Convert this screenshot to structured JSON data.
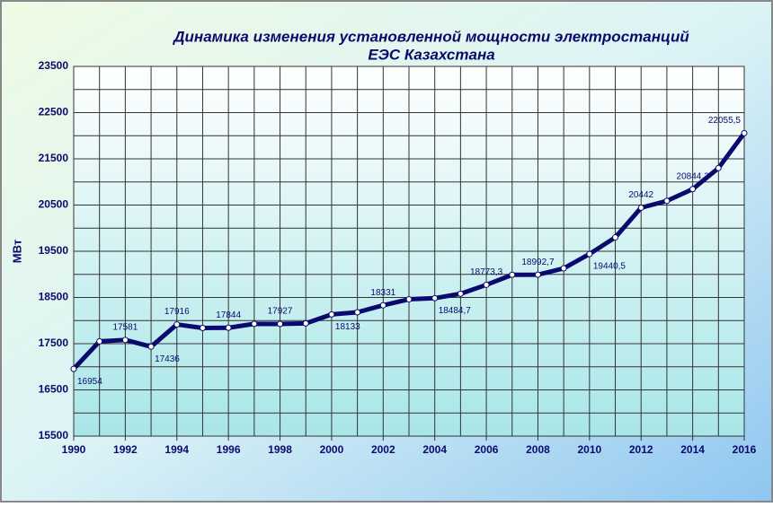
{
  "chart_data": {
    "type": "line",
    "title": "Динамика  изменения  установленной  мощности  электростанций",
    "subtitle": "ЕЭС Казахстана",
    "y_label": "МВт",
    "x": [
      1990,
      1991,
      1992,
      1993,
      1994,
      1995,
      1996,
      1997,
      1998,
      1999,
      2000,
      2001,
      2002,
      2003,
      2004,
      2005,
      2006,
      2007,
      2008,
      2009,
      2010,
      2011,
      2012,
      2013,
      2014,
      2015,
      2016
    ],
    "series": [
      {
        "name": null,
        "color": "#0a0a6e",
        "values": [
          16954,
          17550,
          17581,
          17436,
          17916,
          17840,
          17844,
          17930,
          17927,
          17940,
          18133,
          18180,
          18331,
          18460,
          18484.7,
          18580,
          18773.3,
          18990,
          18992.7,
          19130,
          19440.5,
          19800,
          20442,
          20590,
          20844.2,
          21300,
          22055.5
        ],
        "value_labels": [
          "16954",
          null,
          "17581",
          "17436",
          "17916",
          null,
          "17844",
          null,
          "17927",
          null,
          "18133",
          null,
          "18331",
          null,
          "18484,7",
          null,
          "18773,3",
          null,
          "18992,7",
          null,
          "19440,5",
          null,
          "20442",
          null,
          "20844,2",
          null,
          "22055,5"
        ]
      }
    ],
    "xlim": [
      1990,
      2016
    ],
    "xticks": [
      1990,
      1992,
      1994,
      1996,
      1998,
      2000,
      2002,
      2004,
      2006,
      2008,
      2010,
      2012,
      2014,
      2016
    ],
    "ylim": [
      15500,
      23500
    ],
    "yticks": [
      15500,
      16500,
      17500,
      18500,
      19500,
      20500,
      21500,
      22500,
      23500
    ],
    "grid": true
  }
}
